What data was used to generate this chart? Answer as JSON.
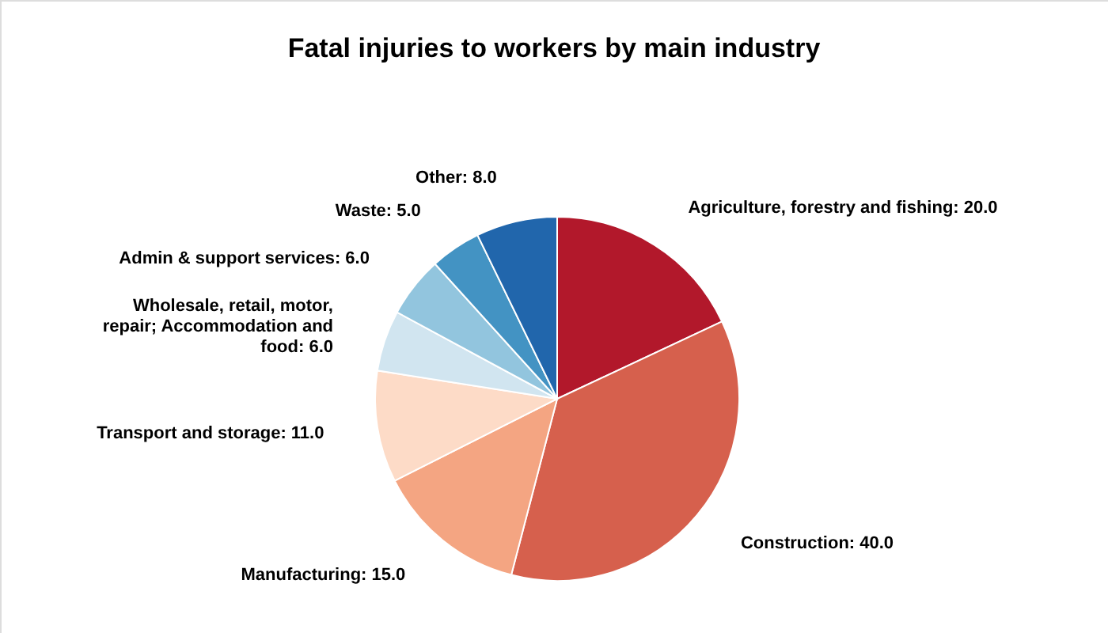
{
  "chart_data": {
    "type": "pie",
    "title": "Fatal injuries to workers by main industry",
    "categories": [
      "Agriculture, forestry and fishing",
      "Construction",
      "Manufacturing",
      "Transport and storage",
      "Wholesale, retail, motor, repair; Accommodation and food",
      "Admin & support services",
      "Waste",
      "Other"
    ],
    "values": [
      20.0,
      40.0,
      15.0,
      11.0,
      6.0,
      6.0,
      5.0,
      8.0
    ],
    "colors": [
      "#b2182b",
      "#d6604d",
      "#f4a582",
      "#fddbc7",
      "#d1e5f0",
      "#92c5de",
      "#4393c3",
      "#2166ac"
    ],
    "value_labels": [
      "20.0",
      "40.0",
      "15.0",
      "11.0",
      "6.0",
      "6.0",
      "5.0",
      "8.0"
    ],
    "legend": false
  }
}
